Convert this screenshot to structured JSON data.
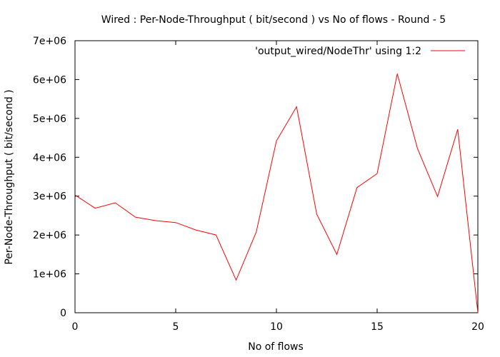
{
  "chart_data": {
    "type": "line",
    "title": "Wired : Per-Node-Throughput ( bit/second ) vs No of flows - Round - 5",
    "xlabel": "No of flows",
    "ylabel": "Per-Node-Throughput ( bit/second )",
    "xlim": [
      0,
      20
    ],
    "ylim": [
      0,
      7000000
    ],
    "x_ticks": [
      0,
      5,
      10,
      15,
      20
    ],
    "x_tick_labels": [
      "0",
      "5",
      "10",
      "15",
      "20"
    ],
    "y_ticks": [
      0,
      1000000,
      2000000,
      3000000,
      4000000,
      5000000,
      6000000,
      7000000
    ],
    "y_tick_labels": [
      "0",
      "1e+06",
      "2e+06",
      "3e+06",
      "4e+06",
      "5e+06",
      "6e+06",
      "7e+06"
    ],
    "grid": false,
    "legend_position": "top-right",
    "series": [
      {
        "name": "'output_wired/NodeThr' using 1:2",
        "color": "#ff0000",
        "x": [
          0,
          1,
          2,
          3,
          4,
          5,
          6,
          7,
          8,
          9,
          10,
          11,
          12,
          13,
          14,
          15,
          16,
          17,
          18,
          19,
          20
        ],
        "y": [
          3030000,
          2690000,
          2830000,
          2460000,
          2370000,
          2320000,
          2130000,
          2000000,
          840000,
          2080000,
          4420000,
          5300000,
          2540000,
          1500000,
          3220000,
          3580000,
          6150000,
          4230000,
          2990000,
          4720000,
          0
        ]
      }
    ]
  }
}
